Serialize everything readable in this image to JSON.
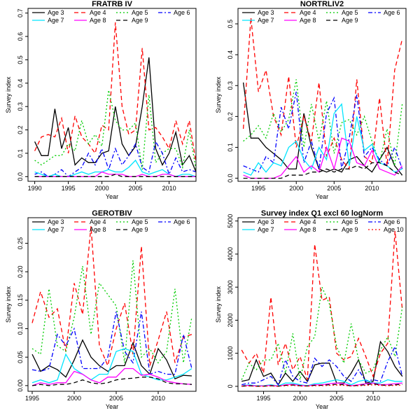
{
  "figure": {
    "title": ""
  },
  "colors": {
    "Age 3": "#000000",
    "Age 4": "#ff0000",
    "Age 5": "#00cc00",
    "Age 6": "#0000ff",
    "Age 7": "#00e5ff",
    "Age 8": "#ff00ff",
    "Age 9": "#000000",
    "Age 10": "#ff0000"
  },
  "styles": {
    "Age 3": "solid",
    "Age 4": "dashed",
    "Age 5": "dotted",
    "Age 6": "dotdash",
    "Age 7": "solid",
    "Age 8": "solid",
    "Age 9": "dashed",
    "Age 10": "dotted"
  },
  "chart_data": [
    {
      "type": "line",
      "title": "FRATRB IV",
      "xlabel": "Year",
      "ylabel": "Survey index",
      "xlim": [
        1989,
        2014
      ],
      "ylim": [
        -0.02,
        0.72
      ],
      "xticks": [
        1990,
        1995,
        2000,
        2005,
        2010
      ],
      "yticks": [
        0.0,
        0.1,
        0.2,
        0.3,
        0.4,
        0.5,
        0.6,
        0.7
      ],
      "ytick_labels": [
        "0.0",
        "0.1",
        "0.2",
        "0.3",
        "0.4",
        "0.5",
        "0.6",
        "0.7"
      ],
      "legend_position": "top",
      "legend": [
        "Age 3",
        "Age 4",
        "Age 5",
        "Age 6",
        "Age 7",
        "Age 8",
        "Age 9"
      ],
      "x": [
        1990,
        1991,
        1992,
        1993,
        1994,
        1995,
        1996,
        1997,
        1998,
        1999,
        2000,
        2001,
        2002,
        2003,
        2004,
        2005,
        2006,
        2007,
        2008,
        2009,
        2010,
        2011,
        2012,
        2013,
        2014
      ],
      "series": [
        {
          "name": "Age 3",
          "values": [
            0.15,
            0.09,
            0.09,
            0.29,
            0.12,
            0.21,
            0.05,
            0.08,
            0.06,
            0.06,
            0.1,
            0.11,
            0.3,
            0.14,
            0.09,
            0.13,
            0.3,
            0.51,
            0.12,
            0.05,
            0.1,
            0.19,
            0.05,
            0.09,
            0.02
          ]
        },
        {
          "name": "Age 4",
          "values": [
            0.11,
            0.17,
            0.18,
            0.17,
            0.25,
            0.1,
            0.26,
            0.17,
            0.14,
            0.1,
            0.22,
            0.2,
            0.66,
            0.3,
            0.18,
            0.2,
            0.55,
            0.2,
            0.21,
            0.17,
            0.12,
            0.24,
            0.14,
            0.24,
            0.06
          ]
        },
        {
          "name": "Age 5",
          "values": [
            0.07,
            0.05,
            0.07,
            0.09,
            0.09,
            0.14,
            0.11,
            0.24,
            0.14,
            0.18,
            0.13,
            0.37,
            0.24,
            0.2,
            0.2,
            0.23,
            0.03,
            0.35,
            0.06,
            0.1,
            0.12,
            0.12,
            0.04,
            0.2,
            0.03
          ]
        },
        {
          "name": "Age 6",
          "values": [
            0.01,
            0.02,
            0.0,
            0.01,
            0.03,
            0.0,
            0.02,
            0.04,
            0.1,
            0.05,
            0.12,
            0.03,
            0.12,
            0.05,
            0.09,
            0.14,
            0.04,
            0.02,
            0.15,
            0.1,
            0.01,
            0.08,
            0.02,
            0.03,
            0.02
          ]
        },
        {
          "name": "Age 7",
          "values": [
            0.02,
            0.01,
            0.0,
            0.01,
            0.0,
            0.0,
            0.01,
            0.02,
            0.01,
            0.02,
            0.02,
            0.03,
            0.02,
            0.02,
            0.04,
            0.07,
            0.02,
            0.01,
            0.02,
            0.03,
            0.01,
            0.0,
            0.01,
            0.01,
            0.0
          ]
        },
        {
          "name": "Age 8",
          "values": [
            0.0,
            0.0,
            0.0,
            0.0,
            0.0,
            0.0,
            0.0,
            0.0,
            0.0,
            0.0,
            0.02,
            0.01,
            0.01,
            0.01,
            0.0,
            0.0,
            0.01,
            0.0,
            0.0,
            0.01,
            0.01,
            0.0,
            0.0,
            0.0,
            0.0
          ]
        },
        {
          "name": "Age 9",
          "values": [
            0.0,
            0.0,
            0.0,
            0.0,
            0.0,
            0.0,
            0.0,
            0.0,
            0.0,
            0.0,
            0.0,
            0.0,
            0.01,
            0.0,
            0.0,
            0.0,
            0.0,
            0.0,
            0.0,
            0.0,
            0.0,
            0.0,
            0.0,
            0.0,
            0.0
          ]
        }
      ]
    },
    {
      "type": "line",
      "title": "NORTRLIV2",
      "xlabel": "Year",
      "ylabel": "Survey index",
      "xlim": [
        1992.3,
        2014.5
      ],
      "ylim": [
        -0.01,
        0.55
      ],
      "xticks": [
        1995,
        2000,
        2005,
        2010
      ],
      "yticks": [
        0.0,
        0.1,
        0.2,
        0.3,
        0.4,
        0.5
      ],
      "ytick_labels": [
        "0.0",
        "0.1",
        "0.2",
        "0.3",
        "0.4",
        "0.5"
      ],
      "legend_position": "top",
      "legend": [
        "Age 3",
        "Age 4",
        "Age 5",
        "Age 6",
        "Age 7",
        "Age 8",
        "Age 9"
      ],
      "x": [
        1993,
        1994,
        1995,
        1996,
        1997,
        1998,
        1999,
        2000,
        2001,
        2002,
        2003,
        2004,
        2005,
        2006,
        2007,
        2008,
        2009,
        2010,
        2011,
        2012,
        2013,
        2014
      ],
      "series": [
        {
          "name": "Age 3",
          "values": [
            0.31,
            0.13,
            0.13,
            0.1,
            0.08,
            0.06,
            0.03,
            0.03,
            0.21,
            0.1,
            0.03,
            0.02,
            0.03,
            0.02,
            0.06,
            0.07,
            0.04,
            0.02,
            0.06,
            0.1,
            0.04,
            0.01
          ]
        },
        {
          "name": "Age 4",
          "values": [
            0.16,
            0.52,
            0.28,
            0.35,
            0.2,
            0.14,
            0.33,
            0.1,
            0.2,
            0.12,
            0.31,
            0.07,
            0.13,
            0.06,
            0.03,
            0.32,
            0.07,
            0.05,
            0.26,
            0.04,
            0.35,
            0.45
          ]
        },
        {
          "name": "Age 5",
          "values": [
            0.12,
            0.14,
            0.17,
            0.13,
            0.21,
            0.15,
            0.19,
            0.32,
            0.1,
            0.24,
            0.12,
            0.25,
            0.08,
            0.18,
            0.19,
            0.14,
            0.2,
            0.12,
            0.05,
            0.16,
            0.04,
            0.24
          ]
        },
        {
          "name": "Age 6",
          "values": [
            0.04,
            0.03,
            0.02,
            0.07,
            0.05,
            0.23,
            0.16,
            0.28,
            0.05,
            0.12,
            0.03,
            0.21,
            0.26,
            0.03,
            0.13,
            0.27,
            0.07,
            0.1,
            0.06,
            0.04,
            0.1,
            0.03
          ]
        },
        {
          "name": "Age 7",
          "values": [
            0.02,
            0.01,
            0.05,
            0.02,
            0.05,
            0.04,
            0.1,
            0.12,
            0.06,
            0.03,
            0.1,
            0.06,
            0.21,
            0.24,
            0.04,
            0.2,
            0.09,
            0.11,
            0.05,
            0.04,
            0.02,
            0.03
          ]
        },
        {
          "name": "Age 8",
          "values": [
            0.01,
            0.0,
            0.0,
            0.0,
            0.0,
            0.01,
            0.04,
            0.07,
            0.02,
            0.04,
            0.02,
            0.1,
            0.03,
            0.13,
            0.12,
            0.05,
            0.04,
            0.09,
            0.03,
            0.02,
            0.01,
            0.04
          ]
        },
        {
          "name": "Age 9",
          "values": [
            0.0,
            0.0,
            0.0,
            0.0,
            0.0,
            0.0,
            0.01,
            0.01,
            0.01,
            0.02,
            0.02,
            0.03,
            0.02,
            0.03,
            0.03,
            0.04,
            0.03,
            0.05,
            0.05,
            0.04,
            0.02,
            0.01
          ]
        }
      ]
    },
    {
      "type": "line",
      "title": "GEROTBIV",
      "xlabel": "Year",
      "ylabel": "Survey index",
      "xlim": [
        1994.5,
        2014.5
      ],
      "ylim": [
        -0.01,
        0.295
      ],
      "xticks": [
        1995,
        2000,
        2005,
        2010
      ],
      "yticks": [
        0.0,
        0.05,
        0.1,
        0.15,
        0.2,
        0.25
      ],
      "ytick_labels": [
        "0.00",
        "0.05",
        "0.10",
        "0.15",
        "0.20",
        "0.25"
      ],
      "legend_position": "top",
      "legend": [
        "Age 3",
        "Age 4",
        "Age 5",
        "Age 6",
        "Age 7",
        "Age 8",
        "Age 9"
      ],
      "x": [
        1995,
        1996,
        1997,
        1998,
        1999,
        2000,
        2001,
        2002,
        2003,
        2004,
        2005,
        2006,
        2007,
        2008,
        2009,
        2010,
        2011,
        2012,
        2013,
        2014
      ],
      "series": [
        {
          "name": "Age 3",
          "values": [
            0.055,
            0.025,
            0.035,
            0.028,
            0.015,
            0.045,
            0.08,
            0.05,
            0.035,
            0.025,
            0.035,
            0.035,
            0.075,
            0.035,
            0.02,
            0.065,
            0.045,
            0.012,
            0.018,
            0.017
          ]
        },
        {
          "name": "Age 4",
          "values": [
            0.11,
            0.165,
            0.12,
            0.135,
            0.06,
            0.18,
            0.125,
            0.28,
            0.07,
            0.035,
            0.1,
            0.145,
            0.055,
            0.245,
            0.035,
            0.08,
            0.13,
            0.04,
            0.085,
            0.09
          ]
        },
        {
          "name": "Age 5",
          "values": [
            0.065,
            0.055,
            0.17,
            0.07,
            0.06,
            0.12,
            0.21,
            0.09,
            0.18,
            0.16,
            0.14,
            0.04,
            0.22,
            0.05,
            0.065,
            0.04,
            0.06,
            0.17,
            0.04,
            0.12
          ]
        },
        {
          "name": "Age 6",
          "values": [
            0.028,
            0.025,
            0.03,
            0.09,
            0.07,
            0.1,
            0.03,
            0.03,
            0.03,
            0.05,
            0.13,
            0.06,
            0.04,
            0.13,
            0.02,
            0.025,
            0.02,
            0.02,
            0.09,
            0.03
          ]
        },
        {
          "name": "Age 7",
          "values": [
            0.005,
            0.01,
            0.005,
            0.01,
            0.055,
            0.03,
            0.02,
            0.01,
            0.02,
            0.02,
            0.06,
            0.065,
            0.06,
            0.02,
            0.015,
            0.01,
            0.01,
            0.015,
            0.02,
            0.03
          ]
        },
        {
          "name": "Age 8",
          "values": [
            0.0,
            0.005,
            0.002,
            0.005,
            0.005,
            0.025,
            0.02,
            0.01,
            0.005,
            0.015,
            0.015,
            0.03,
            0.03,
            0.018,
            0.02,
            0.015,
            0.008,
            0.005,
            0.003,
            0.002
          ]
        },
        {
          "name": "Age 9",
          "values": [
            0.0,
            0.002,
            0.0,
            0.002,
            0.002,
            0.005,
            0.01,
            0.005,
            0.003,
            0.005,
            0.01,
            0.012,
            0.013,
            0.015,
            0.015,
            0.012,
            0.005,
            0.003,
            0.003,
            0.002
          ]
        }
      ]
    },
    {
      "type": "line",
      "title": "Survey index Q1 excl 60 logNorm",
      "xlabel": "Year",
      "ylabel": "Survey index",
      "xlim": [
        1991.5,
        2014.5
      ],
      "ylim": [
        -150,
        5100
      ],
      "xticks": [
        1995,
        2000,
        2005,
        2010
      ],
      "yticks": [
        0,
        1000,
        2000,
        3000,
        4000,
        5000
      ],
      "ytick_labels": [
        "0",
        "1000",
        "2000",
        "3000",
        "4000",
        "5000"
      ],
      "legend_position": "top",
      "legend": [
        "Age 3",
        "Age 4",
        "Age 5",
        "Age 6",
        "Age 7",
        "Age 8",
        "Age 9",
        "Age 10"
      ],
      "x": [
        1992,
        1993,
        1994,
        1995,
        1996,
        1997,
        1998,
        1999,
        2000,
        2001,
        2002,
        2003,
        2004,
        2005,
        2006,
        2007,
        2008,
        2009,
        2010,
        2011,
        2012,
        2013,
        2014
      ],
      "series": [
        {
          "name": "Age 3",
          "values": [
            150,
            200,
            800,
            300,
            400,
            50,
            400,
            150,
            450,
            150,
            650,
            700,
            700,
            100,
            100,
            400,
            800,
            100,
            150,
            1350,
            1050,
            600,
            300
          ]
        },
        {
          "name": "Age 4",
          "values": [
            1100,
            700,
            1000,
            400,
            2700,
            650,
            1300,
            500,
            900,
            200,
            4300,
            2600,
            2700,
            1000,
            800,
            900,
            1450,
            900,
            300,
            1000,
            1300,
            4700,
            2300
          ]
        },
        {
          "name": "Age 5",
          "values": [
            200,
            700,
            500,
            800,
            800,
            1300,
            400,
            1600,
            200,
            1200,
            1500,
            3000,
            2500,
            1200,
            700,
            1900,
            800,
            400,
            500,
            1100,
            1500,
            900,
            2400
          ]
        },
        {
          "name": "Age 6",
          "values": [
            50,
            100,
            100,
            200,
            300,
            50,
            800,
            300,
            150,
            100,
            850,
            600,
            800,
            600,
            300,
            150,
            500,
            150,
            200,
            150,
            750,
            1200,
            300
          ]
        },
        {
          "name": "Age 7",
          "values": [
            10,
            50,
            20,
            20,
            50,
            10,
            100,
            100,
            50,
            20,
            80,
            100,
            150,
            200,
            150,
            50,
            150,
            200,
            100,
            100,
            200,
            150,
            150
          ]
        },
        {
          "name": "Age 8",
          "values": [
            10,
            30,
            10,
            10,
            30,
            5,
            50,
            60,
            30,
            10,
            50,
            50,
            80,
            100,
            80,
            20,
            50,
            80,
            100,
            50,
            60,
            80,
            100
          ]
        },
        {
          "name": "Age 9",
          "values": [
            5,
            20,
            5,
            5,
            20,
            5,
            30,
            40,
            20,
            10,
            30,
            30,
            50,
            60,
            50,
            10,
            30,
            50,
            80,
            40,
            30,
            50,
            60
          ]
        },
        {
          "name": "Age 10",
          "values": [
            5,
            10,
            5,
            5,
            10,
            5,
            20,
            30,
            10,
            5,
            20,
            20,
            30,
            40,
            30,
            10,
            20,
            30,
            50,
            30,
            20,
            30,
            40
          ]
        }
      ]
    }
  ]
}
